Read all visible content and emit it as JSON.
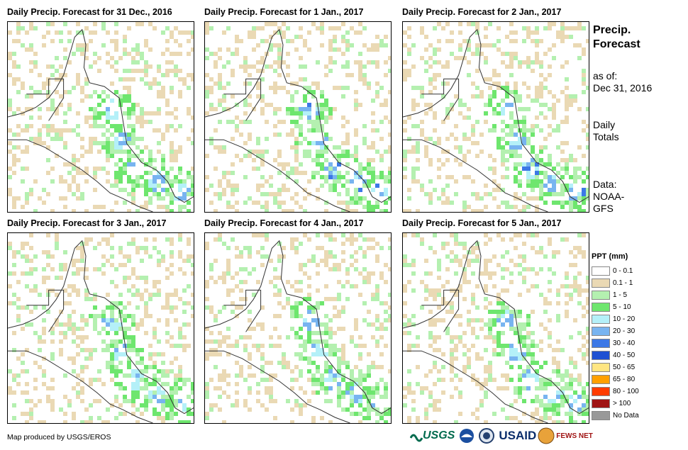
{
  "panels": [
    {
      "title": "Daily Precip. Forecast for 31 Dec., 2016"
    },
    {
      "title": "Daily Precip. Forecast for 1 Jan., 2017"
    },
    {
      "title": "Daily Precip. Forecast for 2 Jan., 2017"
    },
    {
      "title": "Daily Precip. Forecast for 3 Jan., 2017"
    },
    {
      "title": "Daily Precip. Forecast for 4 Jan., 2017"
    },
    {
      "title": "Daily Precip. Forecast for 5 Jan., 2017"
    }
  ],
  "side": {
    "title_line1": "Precip.",
    "title_line2": "Forecast",
    "asof_line1": "as of:",
    "asof_line2": "Dec 31, 2016",
    "totals_line1": "Daily",
    "totals_line2": "Totals",
    "data_line1": "Data:",
    "data_line2": "NOAA-",
    "data_line3": "GFS"
  },
  "legend": {
    "title": "PPT (mm)",
    "items": [
      {
        "label": "0 - 0.1",
        "color": "#ffffff"
      },
      {
        "label": "0.1 - 1",
        "color": "#ead9b4"
      },
      {
        "label": "1 - 5",
        "color": "#b4f0b0"
      },
      {
        "label": "5 - 10",
        "color": "#6ee66e"
      },
      {
        "label": "10 - 20",
        "color": "#b4f0f8"
      },
      {
        "label": "20 - 30",
        "color": "#78b4f0"
      },
      {
        "label": "30 - 40",
        "color": "#3c78e6"
      },
      {
        "label": "40 - 50",
        "color": "#1e50d2"
      },
      {
        "label": "50 - 65",
        "color": "#ffe682"
      },
      {
        "label": "65 - 80",
        "color": "#ffa000"
      },
      {
        "label": "80 - 100",
        "color": "#ff3c00"
      },
      {
        "label": "> 100",
        "color": "#a01414"
      },
      {
        "label": "No Data",
        "color": "#999999"
      }
    ]
  },
  "footer": {
    "credit": "Map produced by USGS/EROS"
  },
  "logos": {
    "usgs": "USGS",
    "noaa": "NOAA",
    "usaid": "USAID",
    "fewsnet": "FEWS NET"
  }
}
